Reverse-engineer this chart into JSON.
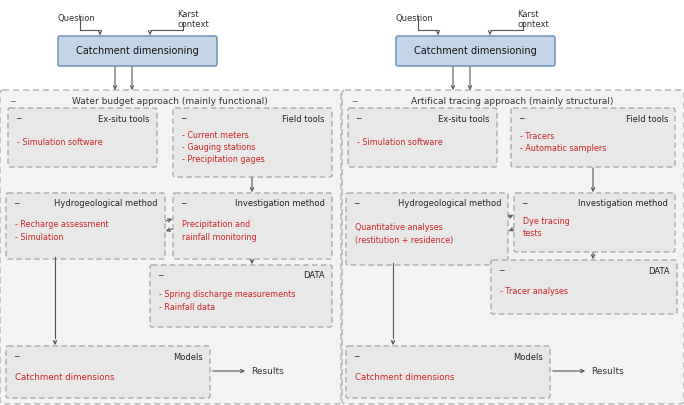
{
  "fig_width": 6.84,
  "fig_height": 4.05,
  "bg_color": "#ffffff",
  "panel_bg": "#f2f2f2",
  "box_bg": "#e8e8e8",
  "blue_box_bg": "#c5d5e8",
  "blue_box_border": "#7799bb",
  "red_text": "#cc2222",
  "black_text": "#222222",
  "arrow_color": "#555555",
  "left": {
    "title": "Water budget approach (mainly functional)",
    "catchment_box": "Catchment dimensioning",
    "question_label": "Question",
    "karst_label": "Karst\ncontext",
    "exsitu_title": "Ex-situ tools",
    "exsitu_content": "- Simulation software",
    "field_title": "Field tools",
    "field_content": "- Current meters\n- Gauging stations\n- Precipitation gages",
    "hydro_title": "Hydrogeological method",
    "hydro_content": "- Recharge assessment\n- Simulation",
    "invest_title": "Investigation method",
    "invest_content": "Precipitation and\nrainfall monitoring",
    "data_title": "DATA",
    "data_content": "- Spring discharge measurements\n- Rainfall data",
    "models_title": "Models",
    "models_content": "Catchment dimensions",
    "results_label": "Results"
  },
  "right": {
    "title": "Artifical tracing approach (mainly structural)",
    "catchment_box": "Catchment dimensioning",
    "question_label": "Question",
    "karst_label": "Karst\ncontext",
    "exsitu_title": "Ex-situ tools",
    "exsitu_content": "- Simulation software",
    "field_title": "Field tools",
    "field_content": "- Tracers\n- Automatic samplers",
    "hydro_title": "Hydrogeological method",
    "hydro_content": "Quantitative analyses\n(restitution + residence)",
    "invest_title": "Investigation method",
    "invest_content": "Dye tracing\ntests",
    "data_title": "DATA",
    "data_content": "- Tracer analyses",
    "models_title": "Models",
    "models_content": "Catchment dimensions",
    "results_label": "Results"
  }
}
